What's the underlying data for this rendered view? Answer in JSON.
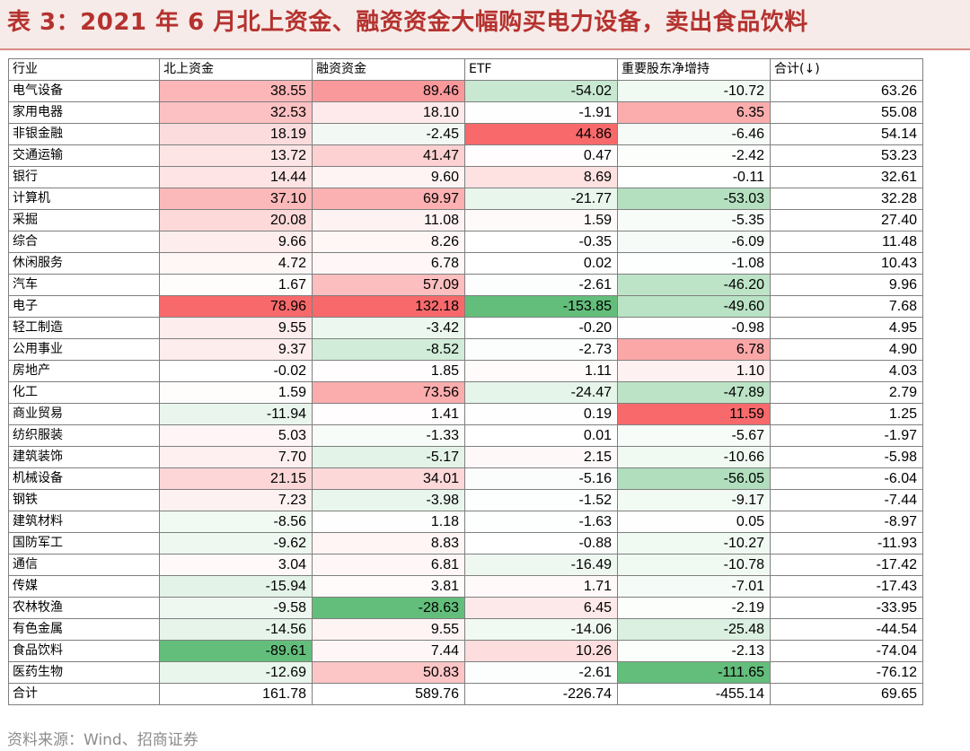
{
  "title": "表 3：2021 年 6 月北上资金、融资资金大幅购买电力设备，卖出食品饮料",
  "source": "资料来源：Wind、招商证券",
  "colors": {
    "title": "#b5322f",
    "title_bg": "#f6ebe8",
    "positive_max": "#f8696b",
    "negative_max": "#63be7b",
    "neutral": "#ffffff"
  },
  "table": {
    "headers": [
      "行业",
      "北上资金",
      "融资资金",
      "ETF",
      "重要股东净增持",
      "合计(↓)"
    ],
    "rows": [
      {
        "name": "电气设备",
        "values": [
          "38.55",
          "89.46",
          "-54.02",
          "-10.72",
          "63.26"
        ]
      },
      {
        "name": "家用电器",
        "values": [
          "32.53",
          "18.10",
          "-1.91",
          "6.35",
          "55.08"
        ]
      },
      {
        "name": "非银金融",
        "values": [
          "18.19",
          "-2.45",
          "44.86",
          "-6.46",
          "54.14"
        ]
      },
      {
        "name": "交通运输",
        "values": [
          "13.72",
          "41.47",
          "0.47",
          "-2.42",
          "53.23"
        ]
      },
      {
        "name": "银行",
        "values": [
          "14.44",
          "9.60",
          "8.69",
          "-0.11",
          "32.61"
        ]
      },
      {
        "name": "计算机",
        "values": [
          "37.10",
          "69.97",
          "-21.77",
          "-53.03",
          "32.28"
        ]
      },
      {
        "name": "采掘",
        "values": [
          "20.08",
          "11.08",
          "1.59",
          "-5.35",
          "27.40"
        ]
      },
      {
        "name": "综合",
        "values": [
          "9.66",
          "8.26",
          "-0.35",
          "-6.09",
          "11.48"
        ]
      },
      {
        "name": "休闲服务",
        "values": [
          "4.72",
          "6.78",
          "0.02",
          "-1.08",
          "10.43"
        ]
      },
      {
        "name": "汽车",
        "values": [
          "1.67",
          "57.09",
          "-2.61",
          "-46.20",
          "9.96"
        ]
      },
      {
        "name": "电子",
        "values": [
          "78.96",
          "132.18",
          "-153.85",
          "-49.60",
          "7.68"
        ]
      },
      {
        "name": "轻工制造",
        "values": [
          "9.55",
          "-3.42",
          "-0.20",
          "-0.98",
          "4.95"
        ]
      },
      {
        "name": "公用事业",
        "values": [
          "9.37",
          "-8.52",
          "-2.73",
          "6.78",
          "4.90"
        ]
      },
      {
        "name": "房地产",
        "values": [
          "-0.02",
          "1.85",
          "1.11",
          "1.10",
          "4.03"
        ]
      },
      {
        "name": "化工",
        "values": [
          "1.59",
          "73.56",
          "-24.47",
          "-47.89",
          "2.79"
        ]
      },
      {
        "name": "商业贸易",
        "values": [
          "-11.94",
          "1.41",
          "0.19",
          "11.59",
          "1.25"
        ]
      },
      {
        "name": "纺织服装",
        "values": [
          "5.03",
          "-1.33",
          "0.01",
          "-5.67",
          "-1.97"
        ]
      },
      {
        "name": "建筑装饰",
        "values": [
          "7.70",
          "-5.17",
          "2.15",
          "-10.66",
          "-5.98"
        ]
      },
      {
        "name": "机械设备",
        "values": [
          "21.15",
          "34.01",
          "-5.16",
          "-56.05",
          "-6.04"
        ]
      },
      {
        "name": "钢铁",
        "values": [
          "7.23",
          "-3.98",
          "-1.52",
          "-9.17",
          "-7.44"
        ]
      },
      {
        "name": "建筑材料",
        "values": [
          "-8.56",
          "1.18",
          "-1.63",
          "0.05",
          "-8.97"
        ]
      },
      {
        "name": "国防军工",
        "values": [
          "-9.62",
          "8.83",
          "-0.88",
          "-10.27",
          "-11.93"
        ]
      },
      {
        "name": "通信",
        "values": [
          "3.04",
          "6.81",
          "-16.49",
          "-10.78",
          "-17.42"
        ]
      },
      {
        "name": "传媒",
        "values": [
          "-15.94",
          "3.81",
          "1.71",
          "-7.01",
          "-17.43"
        ]
      },
      {
        "name": "农林牧渔",
        "values": [
          "-9.58",
          "-28.63",
          "6.45",
          "-2.19",
          "-33.95"
        ]
      },
      {
        "name": "有色金属",
        "values": [
          "-14.56",
          "9.55",
          "-14.06",
          "-25.48",
          "-44.54"
        ]
      },
      {
        "name": "食品饮料",
        "values": [
          "-89.61",
          "7.44",
          "10.26",
          "-2.13",
          "-74.04"
        ]
      },
      {
        "name": "医药生物",
        "values": [
          "-12.69",
          "50.83",
          "-2.61",
          "-111.65",
          "-76.12"
        ]
      }
    ],
    "total": {
      "name": "合计",
      "values": [
        "161.78",
        "589.76",
        "-226.74",
        "-455.14",
        "69.65"
      ]
    }
  }
}
